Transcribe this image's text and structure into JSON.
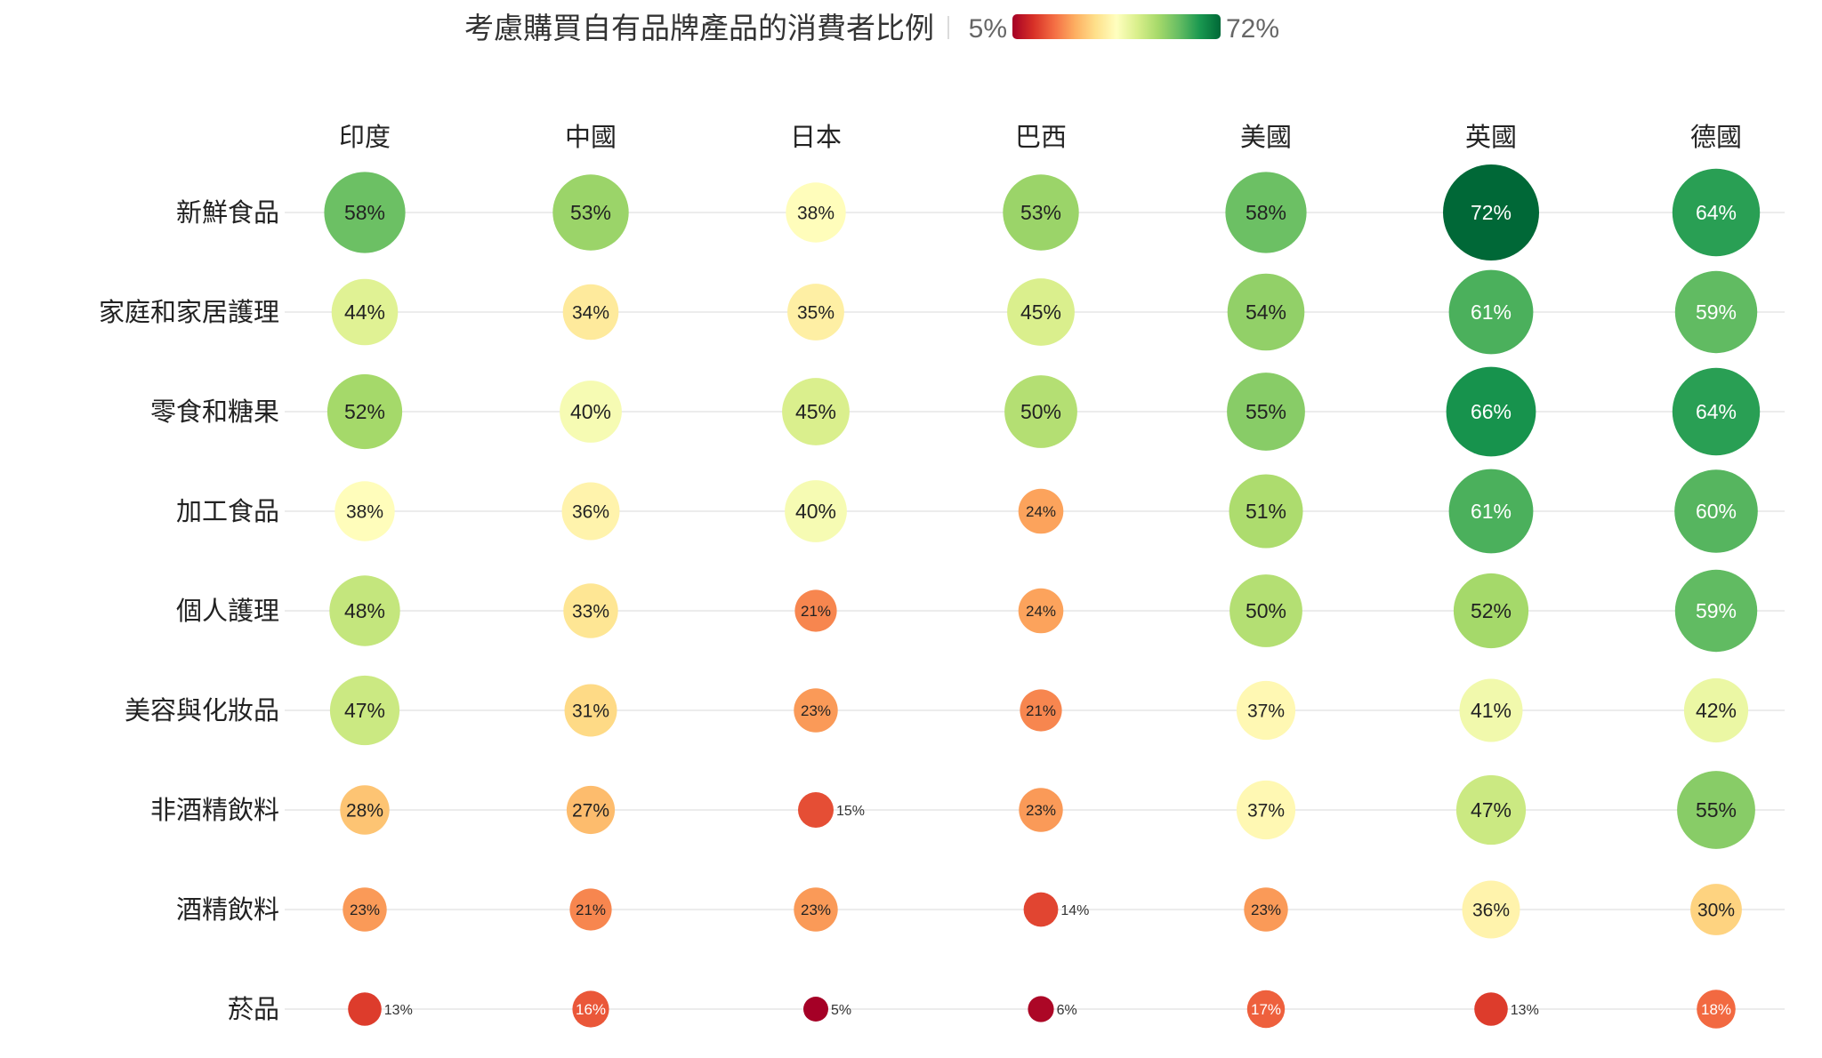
{
  "chart_data": {
    "type": "bubble-heatmap",
    "title": "考慮購買自有品牌產品的消費者比例",
    "legend": {
      "min_label": "5%",
      "max_label": "72%",
      "min": 5,
      "max": 72,
      "colors": [
        "#a50026",
        "#d73027",
        "#f46d43",
        "#fdae61",
        "#fee08b",
        "#ffffbf",
        "#d9ef8b",
        "#a6d96a",
        "#66bd63",
        "#1a9850",
        "#006837"
      ]
    },
    "columns": [
      "印度",
      "中國",
      "日本",
      "巴西",
      "美國",
      "英國",
      "德國"
    ],
    "rows": [
      "新鮮食品",
      "家庭和家居護理",
      "零食和糖果",
      "加工食品",
      "個人護理",
      "美容與化妝品",
      "非酒精飲料",
      "酒精飲料",
      "菸品"
    ],
    "unit": "%",
    "values": [
      [
        58,
        53,
        38,
        53,
        58,
        72,
        64
      ],
      [
        44,
        34,
        35,
        45,
        54,
        61,
        59
      ],
      [
        52,
        40,
        45,
        50,
        55,
        66,
        64
      ],
      [
        38,
        36,
        40,
        24,
        51,
        61,
        60
      ],
      [
        48,
        33,
        21,
        24,
        50,
        52,
        59
      ],
      [
        47,
        31,
        23,
        21,
        37,
        41,
        42
      ],
      [
        28,
        27,
        15,
        23,
        37,
        47,
        55
      ],
      [
        23,
        21,
        23,
        14,
        23,
        36,
        30
      ],
      [
        13,
        16,
        5,
        6,
        17,
        13,
        18
      ]
    ]
  }
}
